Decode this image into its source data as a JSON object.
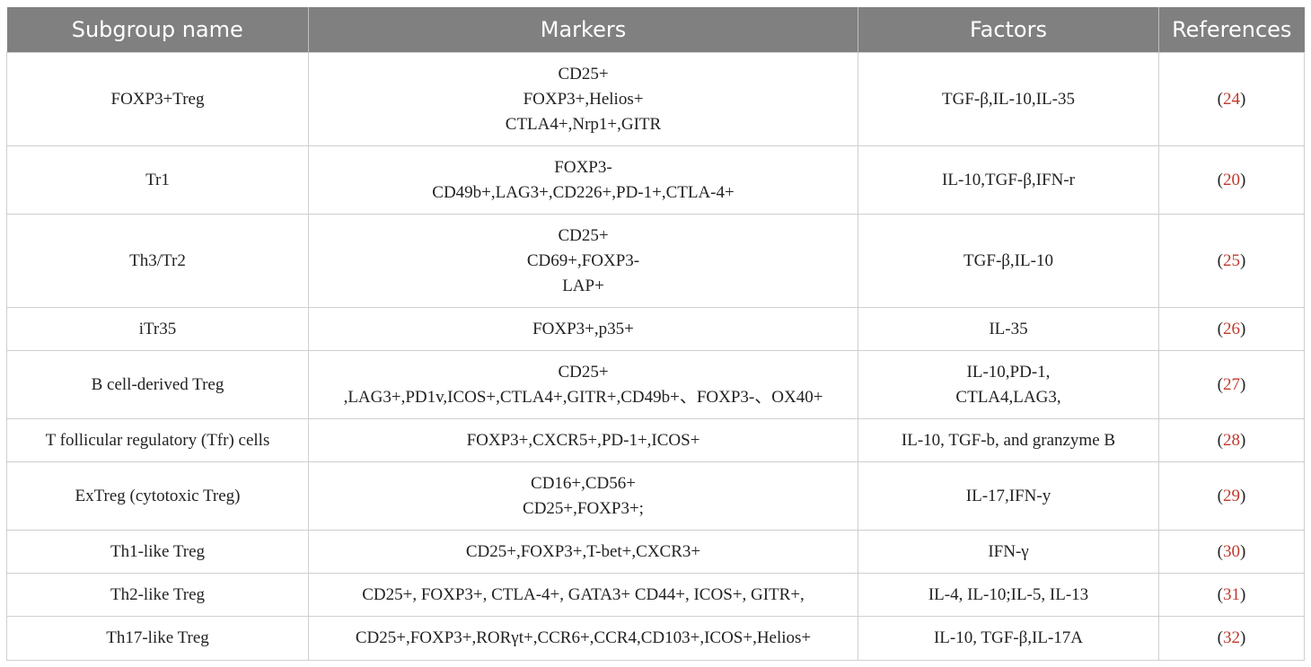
{
  "table": {
    "header": [
      "Subgroup name",
      "Markers",
      "Factors",
      "References"
    ],
    "rows": [
      {
        "name": "FOXP3+Treg",
        "markers": [
          "CD25+",
          "FOXP3+,Helios+",
          "CTLA4+,Nrp1+,GITR"
        ],
        "factors": [
          "TGF-β,IL-10,IL-35"
        ],
        "reference": [
          "(",
          "24",
          ")"
        ]
      },
      {
        "name": "Tr1",
        "markers": [
          "FOXP3-",
          "CD49b+,LAG3+,CD226+,PD-1+,CTLA-4+"
        ],
        "factors": [
          "IL-10,TGF-β,IFN-r"
        ],
        "reference": [
          "(",
          "20",
          ")"
        ]
      },
      {
        "name": "Th3/Tr2",
        "markers": [
          "CD25+",
          "CD69+,FOXP3-",
          "LAP+"
        ],
        "factors": [
          "TGF-β,IL-10"
        ],
        "reference": [
          "(",
          "25",
          ")"
        ]
      },
      {
        "name": "iTr35",
        "markers": [
          "FOXP3+,p35+"
        ],
        "factors": [
          "IL-35"
        ],
        "reference": [
          "(",
          "26",
          ")"
        ]
      },
      {
        "name": "B cell-derived Treg",
        "markers": [
          "CD25+",
          ",LAG3+,PD1v,ICOS+,CTLA4+,GITR+,CD49b+、FOXP3-、OX40+"
        ],
        "factors": [
          "IL-10,PD-1,",
          "CTLA4,LAG3,"
        ],
        "reference": [
          "(",
          "27",
          ")"
        ]
      },
      {
        "name": "T follicular regulatory (Tfr) cells",
        "markers": [
          "FOXP3+,CXCR5+,PD-1+,ICOS+"
        ],
        "factors": [
          "IL-10, TGF-b, and granzyme B"
        ],
        "reference": [
          "(",
          "28",
          ")"
        ]
      },
      {
        "name": "ExTreg (cytotoxic Treg)",
        "markers": [
          "CD16+,CD56+",
          "CD25+,FOXP3+;"
        ],
        "factors": [
          "IL-17,IFN-y"
        ],
        "reference": [
          "(",
          "29",
          ")"
        ]
      },
      {
        "name": "Th1-like Treg",
        "markers": [
          "CD25+,FOXP3+,T-bet+,CXCR3+"
        ],
        "factors": [
          "IFN-γ"
        ],
        "reference": [
          "(",
          "30",
          ")"
        ]
      },
      {
        "name": "Th2-like Treg",
        "markers": [
          "CD25+, FOXP3+, CTLA-4+, GATA3+ CD44+, ICOS+, GITR+,"
        ],
        "factors": [
          "IL-4, IL-10;IL-5, IL-13"
        ],
        "reference": [
          "(",
          "31",
          ")"
        ]
      },
      {
        "name": "Th17-like Treg",
        "markers": [
          "CD25+,FOXP3+,RORγt+,CCR6+,CCR4,CD103+,ICOS+,Helios+"
        ],
        "factors": [
          "IL-10, TGF-β,IL-17A"
        ],
        "reference": [
          "(",
          "32",
          ")"
        ]
      }
    ]
  }
}
